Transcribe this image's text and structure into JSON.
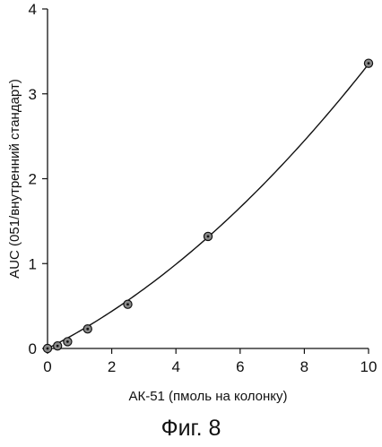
{
  "chart_data": {
    "type": "scatter",
    "xlabel": "АК-51 (пмоль на колонку)",
    "ylabel": "AUC (051/внутренний стандарт)",
    "xlim": [
      0,
      10
    ],
    "ylim": [
      0,
      4
    ],
    "x_ticks": [
      0,
      2,
      4,
      6,
      8,
      10
    ],
    "y_ticks": [
      0,
      1,
      2,
      3,
      4
    ],
    "grid": false,
    "legend": "none",
    "points": [
      {
        "x": 0,
        "y": 0.0
      },
      {
        "x": 0.3125,
        "y": 0.03
      },
      {
        "x": 0.625,
        "y": 0.08
      },
      {
        "x": 1.25,
        "y": 0.23
      },
      {
        "x": 2.5,
        "y": 0.52
      },
      {
        "x": 5,
        "y": 1.32
      },
      {
        "x": 10,
        "y": 3.36
      }
    ],
    "fit_curve": {
      "type": "quadratic",
      "a": 0.0145,
      "b": 0.19,
      "c": 0.0
    }
  },
  "caption": "Фиг. 8",
  "colors": {
    "ink": "#111111",
    "marker_fill": "#8a8a8a"
  }
}
